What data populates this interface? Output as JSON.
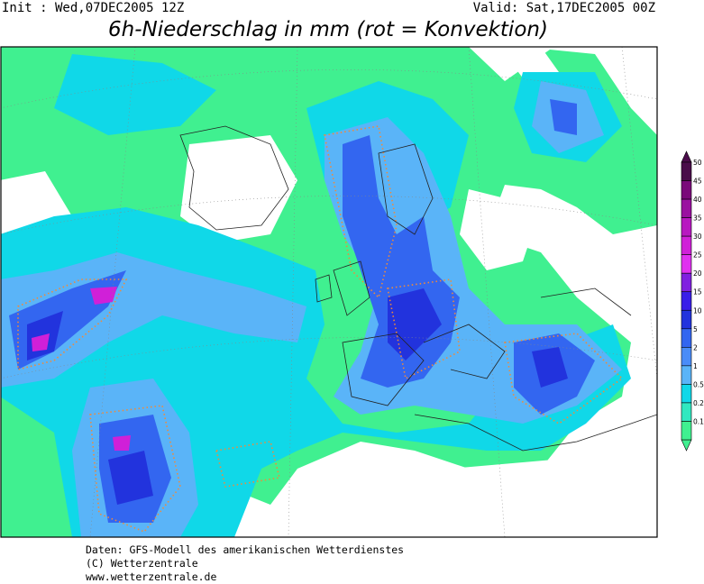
{
  "header": {
    "init": "Init : Wed,07DEC2005 12Z",
    "valid": "Valid: Sat,17DEC2005 00Z",
    "title": "6h-Niederschlag in mm (rot = Konvektion)"
  },
  "legend": {
    "levels": [
      {
        "value": 50,
        "color": "#4a0c4a"
      },
      {
        "value": 45,
        "color": "#7a0a7a"
      },
      {
        "value": 40,
        "color": "#9a10a0"
      },
      {
        "value": 35,
        "color": "#b818c0"
      },
      {
        "value": 30,
        "color": "#d020d8"
      },
      {
        "value": 25,
        "color": "#e030f0"
      },
      {
        "value": 20,
        "color": "#8020e0"
      },
      {
        "value": 15,
        "color": "#3a1ee8"
      },
      {
        "value": 10,
        "color": "#2233dd"
      },
      {
        "value": 5,
        "color": "#3366f0"
      },
      {
        "value": 2,
        "color": "#4a8cf8"
      },
      {
        "value": 1,
        "color": "#5ab4f8"
      },
      {
        "value": 0.5,
        "color": "#10d8e8"
      },
      {
        "value": 0.2,
        "color": "#30e8c0"
      },
      {
        "value": 0.1,
        "color": "#40f090"
      }
    ]
  },
  "footer": {
    "lines": [
      "Daten: GFS-Modell des amerikanischen Wetterdienstes",
      "(C) Wetterzentrale",
      "www.wetterzentrale.de"
    ]
  }
}
